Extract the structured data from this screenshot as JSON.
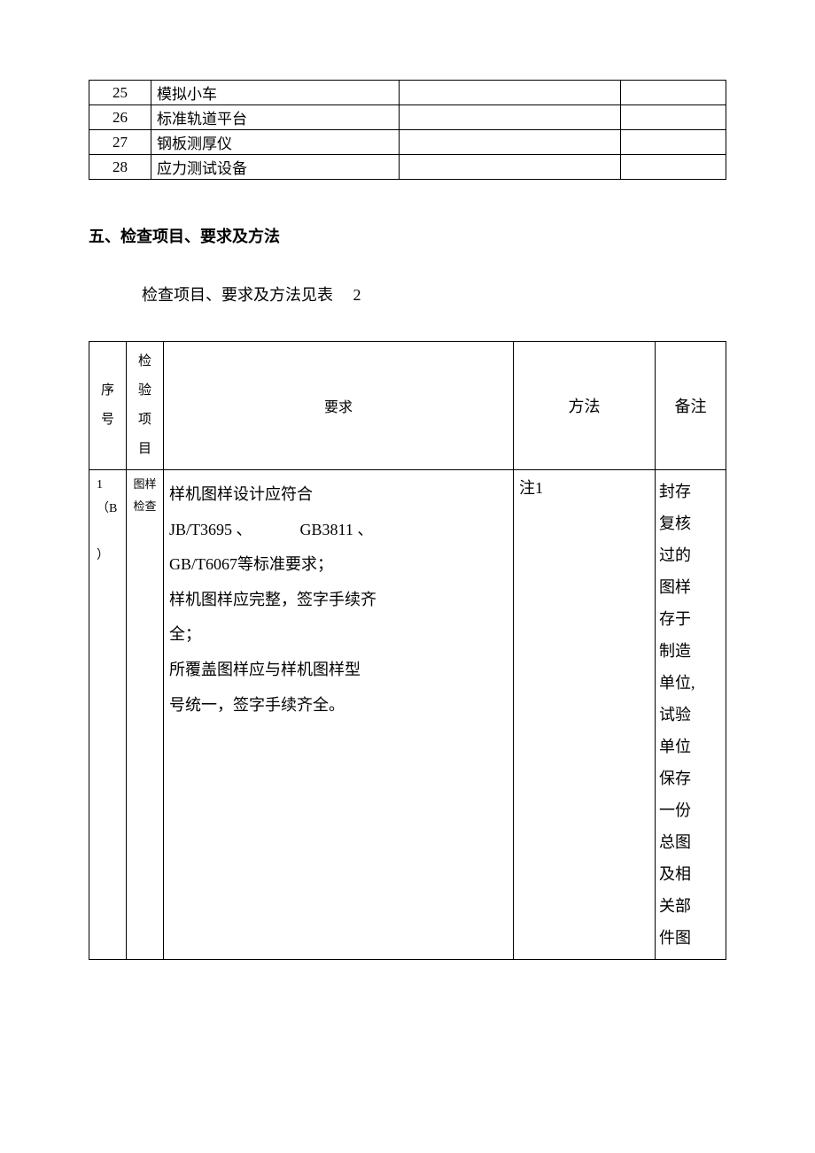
{
  "table1_rows": [
    {
      "num": "25",
      "name": "模拟小车"
    },
    {
      "num": "26",
      "name": "标准轨道平台"
    },
    {
      "num": "27",
      "name": "钢板测厚仪"
    },
    {
      "num": "28",
      "name": "应力测试设备"
    }
  ],
  "section_heading": "五、检查项目、要求及方法",
  "subtext": "检查项目、要求及方法见表  2",
  "table2": {
    "columns": [
      "序号",
      "检验项目",
      "要求",
      "方法",
      "备注"
    ],
    "head": {
      "seq_l1": "序",
      "seq_l2": "号",
      "item_l1": "检验",
      "item_l2": "项目",
      "req": "要求",
      "method": "方法",
      "note": "备注"
    },
    "row1": {
      "seq_l1": "1",
      "seq_l2": "（B",
      "seq_l3": "）",
      "item_l1": "图样",
      "item_l2": "检查",
      "req_l1": "样机图样设计应符合",
      "req_l2": "JB/T3695 、   GB3811 、",
      "req_l3": "GB/T6067等标准要求；",
      "req_l4": "样机图样应完整，签字手续齐",
      "req_l5": "全；",
      "req_l6": "所覆盖图样应与样机图样型",
      "req_l7": "号统一，签字手续齐全。",
      "method": "注1",
      "note_l1": "封存",
      "note_l2": "复核",
      "note_l3": "过的",
      "note_l4": "图样",
      "note_l5": "存于",
      "note_l6": "制造",
      "note_l7": "单位,",
      "note_l8": "试验",
      "note_l9": "单位",
      "note_l10": "保存",
      "note_l11": "一份",
      "note_l12": "总图",
      "note_l13": "及相",
      "note_l14": "关部",
      "note_l15": "件图"
    }
  },
  "style": {
    "page_bg": "#ffffff",
    "text_color": "#000000",
    "border_color": "#000000",
    "body_fontsize_pt": 13.5,
    "small_fontsize_pt": 11,
    "heading_fontsize_pt": 13.5,
    "heading_fontweight": "bold"
  }
}
